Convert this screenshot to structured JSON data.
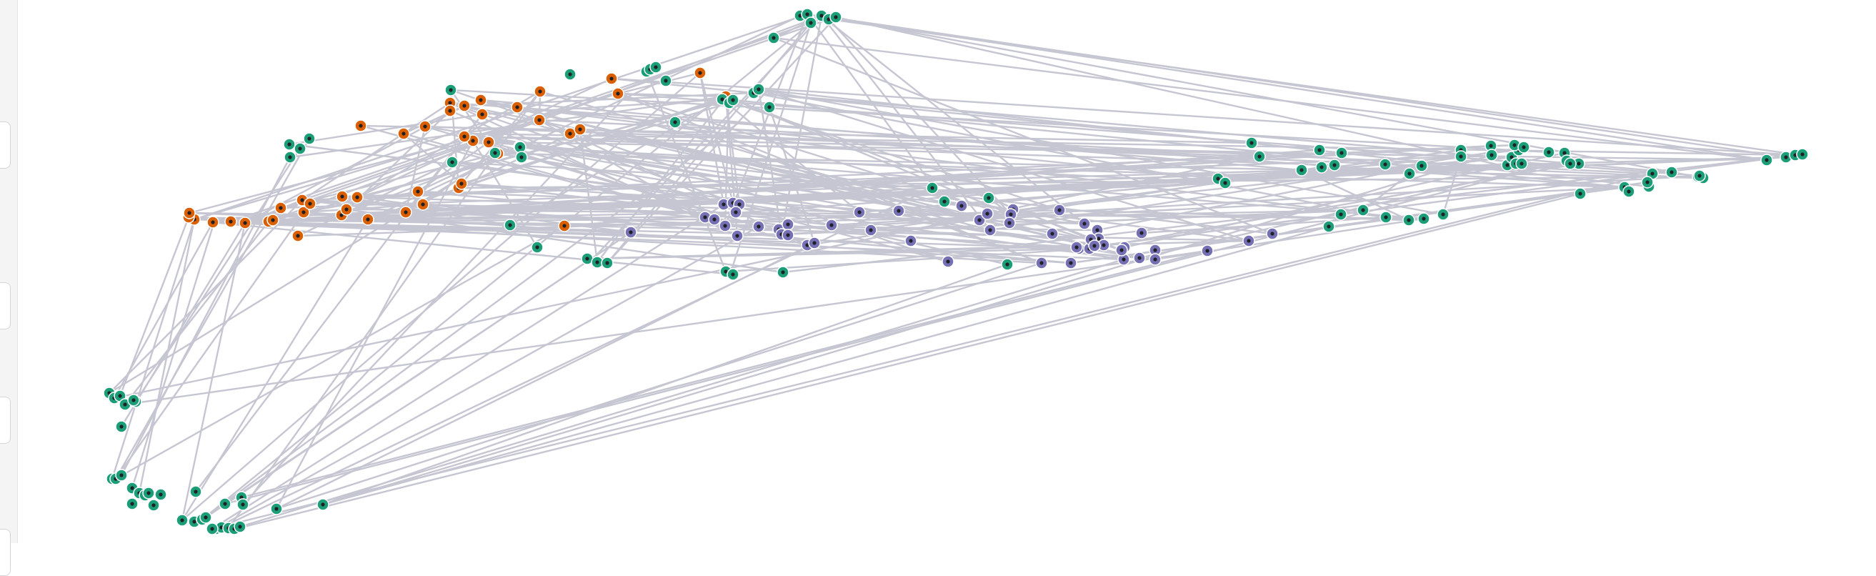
{
  "colors": {
    "orange": "#d95f02",
    "green": "#1b9e77",
    "purple": "#7570b3",
    "edge": "#c6c6d2"
  },
  "sidebar": {
    "handles": [
      {
        "icon": "panel-handle-icon"
      },
      {
        "icon": "panel-handle-icon"
      },
      {
        "icon": "panel-handle-icon"
      },
      {
        "icon": "panel-handle-icon"
      }
    ]
  },
  "graph": {
    "node_count": 226,
    "groups": {
      "orange": 46,
      "green": 128,
      "purple": 52
    }
  }
}
